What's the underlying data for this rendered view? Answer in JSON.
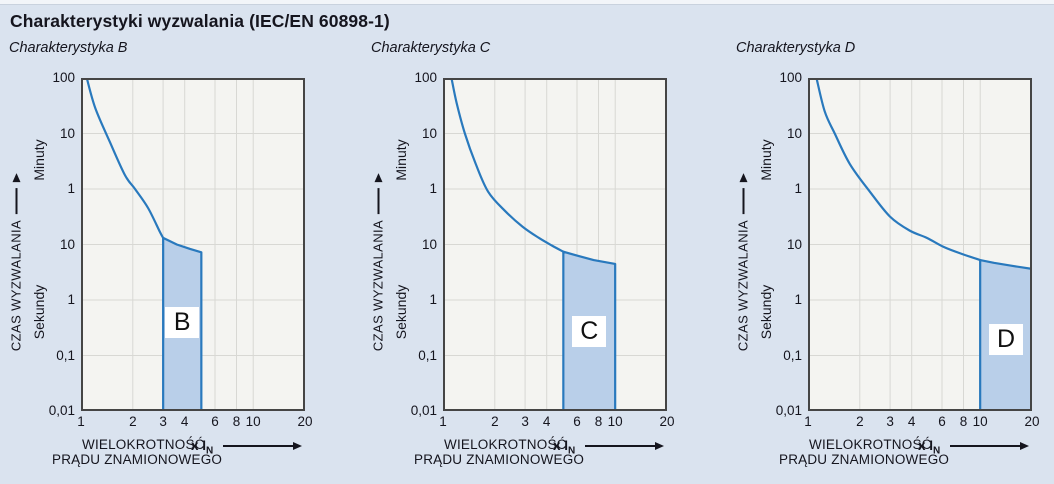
{
  "page": {
    "title": "Charakterystyki wyzwalania (IEC/EN 60898-1)",
    "background_color": "#dae3ef",
    "top_strip_color": "#f2f5f9"
  },
  "colors": {
    "curve": "#2979bd",
    "band_fill": "#b9cfe9",
    "band_stroke": "#2979bd",
    "grid": "#d8d8d4",
    "plot_background": "#f4f4f1",
    "plot_border": "#454545",
    "text": "#15151e"
  },
  "axis_labels": {
    "y_caption": "CZAS WYZWALANIA",
    "y_unit_minutes": "Minuty",
    "y_unit_seconds": "Sekundy",
    "x_caption_line1": "WIELOKROTNOŚĆ",
    "x_caption_line2": "PRĄDU ZNAMIONOWEGO",
    "x_multiplier": "x I",
    "x_multiplier_sub": "N"
  },
  "chart_data": [
    {
      "title": "Charakterystyka B",
      "type": "line",
      "x_scale": "log",
      "y_scale": "log",
      "x_range": [
        1,
        20
      ],
      "x_ticks": [
        1,
        2,
        3,
        4,
        6,
        8,
        10,
        20
      ],
      "y_sections": [
        {
          "unit": "Minuty",
          "ticks": [
            "100",
            "10",
            "1"
          ]
        },
        {
          "unit": "Sekundy",
          "ticks": [
            "10",
            "1",
            "0,1",
            "0,01"
          ]
        }
      ],
      "y_decade_labels_top_to_bottom": [
        "100 Minuty",
        "10 Minuty",
        "1 Minuty",
        "10 Sekundy",
        "1 Sekundy",
        "0,1 Sekundy",
        "0,01 Sekundy"
      ],
      "curve_points_x_decade": [
        [
          1.08,
          6.0
        ],
        [
          1.21,
          5.46
        ],
        [
          1.47,
          4.85
        ],
        [
          1.8,
          4.25
        ],
        [
          2.06,
          4.0
        ],
        [
          2.45,
          3.66
        ],
        [
          2.87,
          3.23
        ],
        [
          3.0,
          3.12
        ]
      ],
      "band": {
        "letter": "B",
        "x_start": 3,
        "x_end": 5,
        "top_edge_x_decade": [
          [
            3.0,
            3.12
          ],
          [
            3.6,
            3.0
          ],
          [
            4.3,
            2.92
          ],
          [
            5.0,
            2.86
          ]
        ],
        "bottom_decade": 0,
        "letter_y_decade": 1.6
      }
    },
    {
      "title": "Charakterystyka C",
      "type": "line",
      "x_scale": "log",
      "y_scale": "log",
      "x_range": [
        1,
        20
      ],
      "x_ticks": [
        1,
        2,
        3,
        4,
        6,
        8,
        10,
        20
      ],
      "y_sections": [
        {
          "unit": "Minuty",
          "ticks": [
            "100",
            "10",
            "1"
          ]
        },
        {
          "unit": "Sekundy",
          "ticks": [
            "10",
            "1",
            "0,1",
            "0,01"
          ]
        }
      ],
      "y_decade_labels_top_to_bottom": [
        "100 Minuty",
        "10 Minuty",
        "1 Minuty",
        "10 Sekundy",
        "1 Sekundy",
        "0,1 Sekundy",
        "0,01 Sekundy"
      ],
      "curve_points_x_decade": [
        [
          1.12,
          6.0
        ],
        [
          1.2,
          5.55
        ],
        [
          1.34,
          5.0
        ],
        [
          1.55,
          4.45
        ],
        [
          1.83,
          3.95
        ],
        [
          2.3,
          3.6
        ],
        [
          2.9,
          3.32
        ],
        [
          3.6,
          3.12
        ],
        [
          4.3,
          2.98
        ],
        [
          5.0,
          2.87
        ]
      ],
      "band": {
        "letter": "C",
        "x_start": 5,
        "x_end": 10,
        "top_edge_x_decade": [
          [
            5.0,
            2.87
          ],
          [
            6.0,
            2.8
          ],
          [
            7.5,
            2.72
          ],
          [
            10.0,
            2.65
          ]
        ],
        "bottom_decade": 0,
        "letter_y_decade": 1.45
      }
    },
    {
      "title": "Charakterystyka D",
      "type": "line",
      "x_scale": "log",
      "y_scale": "log",
      "x_range": [
        1,
        20
      ],
      "x_ticks": [
        1,
        2,
        3,
        4,
        6,
        8,
        10,
        20
      ],
      "y_sections": [
        {
          "unit": "Minuty",
          "ticks": [
            "100",
            "10",
            "1"
          ]
        },
        {
          "unit": "Sekundy",
          "ticks": [
            "10",
            "1",
            "0,1",
            "0,01"
          ]
        }
      ],
      "y_decade_labels_top_to_bottom": [
        "100 Minuty",
        "10 Minuty",
        "1 Minuty",
        "10 Sekundy",
        "1 Sekundy",
        "0,1 Sekundy",
        "0,01 Sekundy"
      ],
      "curve_points_x_decade": [
        [
          1.12,
          6.0
        ],
        [
          1.25,
          5.4
        ],
        [
          1.43,
          5.0
        ],
        [
          1.75,
          4.45
        ],
        [
          2.29,
          3.95
        ],
        [
          3.0,
          3.5
        ],
        [
          3.9,
          3.25
        ],
        [
          4.9,
          3.12
        ],
        [
          6.2,
          2.95
        ],
        [
          8.0,
          2.82
        ],
        [
          10.0,
          2.72
        ]
      ],
      "band": {
        "letter": "D",
        "x_start": 10,
        "x_end": 20,
        "top_edge_x_decade": [
          [
            10.0,
            2.72
          ],
          [
            12.0,
            2.67
          ],
          [
            15.0,
            2.62
          ],
          [
            20.0,
            2.56
          ]
        ],
        "bottom_decade": 0,
        "letter_y_decade": 1.3
      }
    }
  ]
}
